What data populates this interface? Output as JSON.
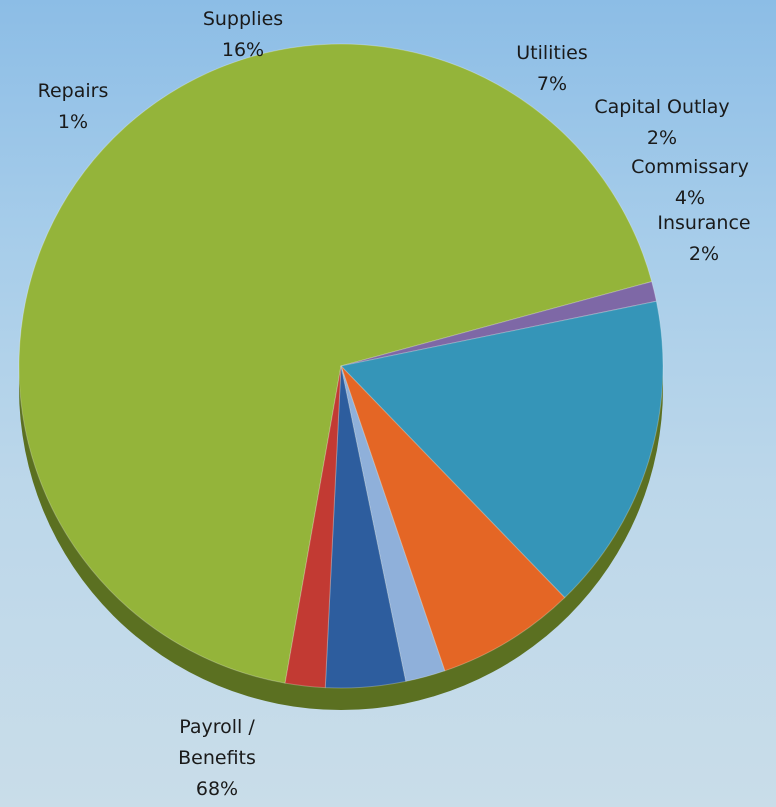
{
  "chart_data": {
    "type": "pie",
    "slices": [
      {
        "label": "Payroll / Benefits",
        "label_lines": [
          "Payroll /",
          "Benefits"
        ],
        "value_text": "68%",
        "value": 68,
        "color": "#94b43a"
      },
      {
        "label": "Repairs",
        "label_lines": [
          "Repairs"
        ],
        "value_text": "1%",
        "value": 1,
        "color": "#7e68a6"
      },
      {
        "label": "Supplies",
        "label_lines": [
          "Supplies"
        ],
        "value_text": "16%",
        "value": 16,
        "color": "#3595b8"
      },
      {
        "label": "Utilities",
        "label_lines": [
          "Utilities"
        ],
        "value_text": "7%",
        "value": 7,
        "color": "#e46625"
      },
      {
        "label": "Capital Outlay",
        "label_lines": [
          "Capital Outlay"
        ],
        "value_text": "2%",
        "value": 2,
        "color": "#8fb0da"
      },
      {
        "label": "Commissary",
        "label_lines": [
          "Commissary"
        ],
        "value_text": "4%",
        "value": 4,
        "color": "#2d5d9e"
      },
      {
        "label": "Insurance",
        "label_lines": [
          "Insurance"
        ],
        "value_text": "2%",
        "value": 2,
        "color": "#c23a33"
      }
    ],
    "side_color": "#5b7021",
    "legend": "none",
    "data_labels": "outside"
  }
}
